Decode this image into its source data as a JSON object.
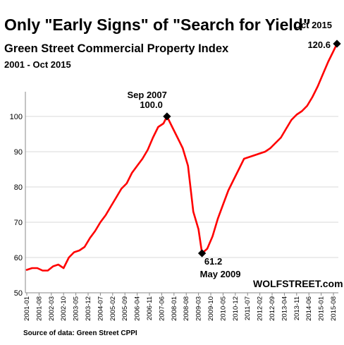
{
  "title": "Only \"Early Signs\" of \"Search for Yield\"",
  "subtitle": "Green Street Commercial Property Index",
  "date_range": "2001 - Oct 2015",
  "watermark": "WOLFSTREET.com",
  "source": "Source of data: Green Street CPPI",
  "colors": {
    "line": "#ff0000",
    "marker": "#000000",
    "axis": "#888888",
    "grid": "#d9d9d9"
  },
  "chart_data": {
    "type": "line",
    "title": "Only \"Early Signs\" of \"Search for Yield\"",
    "subtitle": "Green Street Commercial Property Index",
    "xlabel": "",
    "ylabel": "",
    "ylim": [
      50,
      125
    ],
    "yticks": [
      50,
      60,
      70,
      80,
      90,
      100
    ],
    "grid": true,
    "legend": "none",
    "xticks": [
      "2001-01",
      "2001-08",
      "2002-03",
      "2002-10",
      "2003-05",
      "2003-12",
      "2004-07",
      "2005-02",
      "2005-09",
      "2006-04",
      "2006-11",
      "2007-06",
      "2008-01",
      "2008-08",
      "2009-03",
      "2009-10",
      "2010-05",
      "2010-12",
      "2011-07",
      "2012-02",
      "2012-09",
      "2013-04",
      "2013-11",
      "2014-06",
      "2015-01",
      "2015-08"
    ],
    "series": [
      {
        "x": [
          "2001-01",
          "2001-04",
          "2001-07",
          "2001-10",
          "2002-01",
          "2002-04",
          "2002-07",
          "2002-10",
          "2003-01",
          "2003-04",
          "2003-07",
          "2003-10",
          "2004-01",
          "2004-04",
          "2004-07",
          "2004-10",
          "2005-01",
          "2005-04",
          "2005-07",
          "2005-10",
          "2006-01",
          "2006-04",
          "2006-07",
          "2006-10",
          "2007-01",
          "2007-04",
          "2007-07",
          "2007-09",
          "2007-12",
          "2008-03",
          "2008-06",
          "2008-09",
          "2008-12",
          "2009-03",
          "2009-05",
          "2009-08",
          "2009-11",
          "2010-02",
          "2010-05",
          "2010-08",
          "2010-11",
          "2011-02",
          "2011-05",
          "2011-08",
          "2011-11",
          "2012-02",
          "2012-05",
          "2012-08",
          "2012-11",
          "2013-02",
          "2013-05",
          "2013-08",
          "2013-11",
          "2014-02",
          "2014-05",
          "2014-08",
          "2014-11",
          "2015-02",
          "2015-05",
          "2015-08",
          "2015-10"
        ],
        "values": [
          56.5,
          57.0,
          57.0,
          56.3,
          56.3,
          57.5,
          58.0,
          57.0,
          60.0,
          61.5,
          62.0,
          63.0,
          65.5,
          67.5,
          70.0,
          72.0,
          74.5,
          77.0,
          79.5,
          81.0,
          84.0,
          86.0,
          88.0,
          90.5,
          94.0,
          97.0,
          98.0,
          100.0,
          97.0,
          94.0,
          91.0,
          86.0,
          73.0,
          68.0,
          61.2,
          62.5,
          66.0,
          71.0,
          75.0,
          79.0,
          82.0,
          85.0,
          88.0,
          88.5,
          89.0,
          89.5,
          90.0,
          91.0,
          92.5,
          94.0,
          96.5,
          99.0,
          100.5,
          101.5,
          103.0,
          105.5,
          108.5,
          112.0,
          115.5,
          118.5,
          120.6
        ]
      }
    ],
    "annotations": [
      {
        "x": "2007-09",
        "y": 100.0,
        "label": "Sep 2007",
        "value": "100.0"
      },
      {
        "x": "2009-05",
        "y": 61.2,
        "label": "May 2009",
        "value": "61.2"
      },
      {
        "x": "2015-10",
        "y": 120.6,
        "label": "Oct 2015",
        "value": "120.6"
      }
    ]
  }
}
